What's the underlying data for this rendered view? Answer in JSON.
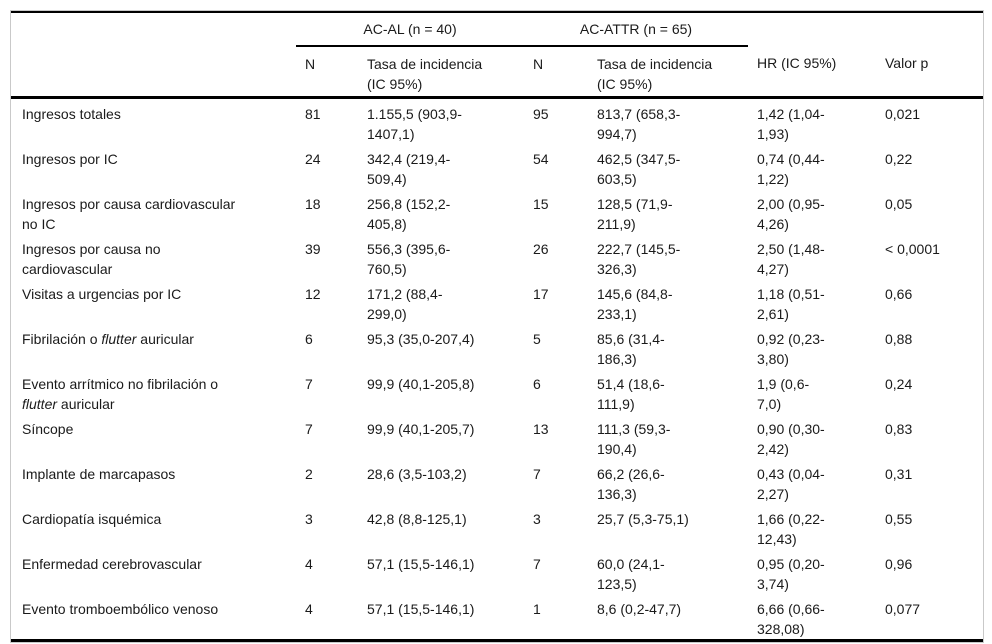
{
  "table": {
    "group_headers": [
      {
        "label": "AC-AL (n = 40)"
      },
      {
        "label": "AC-ATTR (n = 65)"
      }
    ],
    "sub_headers": {
      "n": "N",
      "tasa": "Tasa de incidencia\n(IC 95%)",
      "hr": "HR (IC 95%)",
      "p": "Valor p"
    },
    "rows": [
      {
        "label": "Ingresos totales",
        "n_acal": "81",
        "tasa_acal": "1.155,5 (903,9-\n1407,1)",
        "n_acattr": "95",
        "tasa_acattr": "813,7 (658,3-\n994,7)",
        "hr": "1,42 (1,04-\n1,93)",
        "p": "0,021"
      },
      {
        "label": "Ingresos por IC",
        "n_acal": "24",
        "tasa_acal": "342,4 (219,4-\n509,4)",
        "n_acattr": "54",
        "tasa_acattr": "462,5 (347,5-\n603,5)",
        "hr": "0,74 (0,44-\n1,22)",
        "p": "0,22"
      },
      {
        "label": "Ingresos por causa cardiovascular\nno IC",
        "n_acal": "18",
        "tasa_acal": "256,8 (152,2-\n405,8)",
        "n_acattr": "15",
        "tasa_acattr": "128,5 (71,9-\n211,9)",
        "hr": "2,00 (0,95-\n4,26)",
        "p": "0,05"
      },
      {
        "label": "Ingresos por causa no\ncardiovascular",
        "n_acal": "39",
        "tasa_acal": "556,3 (395,6-\n760,5)",
        "n_acattr": "26",
        "tasa_acattr": "222,7 (145,5-\n326,3)",
        "hr": "2,50 (1,48-\n4,27)",
        "p": "< 0,0001"
      },
      {
        "label": "Visitas a urgencias por IC",
        "n_acal": "12",
        "tasa_acal": "171,2 (88,4-\n299,0)",
        "n_acattr": "17",
        "tasa_acattr": "145,6 (84,8-\n233,1)",
        "hr": "1,18 (0,51-\n2,61)",
        "p": "0,66"
      },
      {
        "label": "Fibrilación o *flutter* auricular",
        "n_acal": "6",
        "tasa_acal": "95,3 (35,0-207,4)",
        "n_acattr": "5",
        "tasa_acattr": "85,6 (31,4-\n186,3)",
        "hr": "0,92 (0,23-\n3,80)",
        "p": "0,88"
      },
      {
        "label": "Evento arrítmico no fibrilación o\n*flutter* auricular",
        "n_acal": "7",
        "tasa_acal": "99,9 (40,1-205,8)",
        "n_acattr": "6",
        "tasa_acattr": "51,4 (18,6-\n111,9)",
        "hr": "1,9 (0,6-\n7,0)",
        "p": "0,24"
      },
      {
        "label": "Síncope",
        "n_acal": "7",
        "tasa_acal": "99,9 (40,1-205,7)",
        "n_acattr": "13",
        "tasa_acattr": "111,3 (59,3-\n190,4)",
        "hr": "0,90 (0,30-\n2,42)",
        "p": "0,83"
      },
      {
        "label": "Implante de marcapasos",
        "n_acal": "2",
        "tasa_acal": "28,6 (3,5-103,2)",
        "n_acattr": "7",
        "tasa_acattr": "66,2 (26,6-\n136,3)",
        "hr": "0,43 (0,04-\n2,27)",
        "p": "0,31"
      },
      {
        "label": "Cardiopatía isquémica",
        "n_acal": "3",
        "tasa_acal": "42,8 (8,8-125,1)",
        "n_acattr": "3",
        "tasa_acattr": "25,7 (5,3-75,1)",
        "hr": "1,66 (0,22-\n12,43)",
        "p": "0,55"
      },
      {
        "label": "Enfermedad cerebrovascular",
        "n_acal": "4",
        "tasa_acal": "57,1 (15,5-146,1)",
        "n_acattr": "7",
        "tasa_acattr": "60,0 (24,1-\n123,5)",
        "hr": "0,95 (0,20-\n3,74)",
        "p": "0,96"
      },
      {
        "label": "Evento tromboembólico venoso",
        "n_acal": "4",
        "tasa_acal": "57,1 (15,5-146,1)",
        "n_acattr": "1",
        "tasa_acattr": "8,6 (0,2-47,7)",
        "hr": "6,66 (0,66-\n328,08)",
        "p": "0,077"
      }
    ]
  },
  "colors": {
    "rule": "#000000",
    "outer_border": "#c9c9c9",
    "text": "#1a1a1a"
  }
}
